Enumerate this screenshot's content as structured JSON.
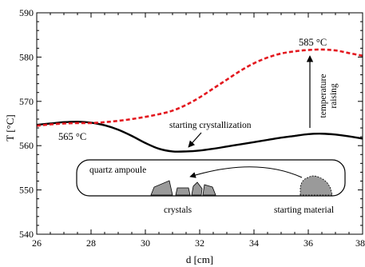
{
  "chart_data": {
    "type": "line",
    "xlabel": "d [cm]",
    "ylabel": "T [°C]",
    "xlim": [
      26,
      38
    ],
    "ylim": [
      540,
      590
    ],
    "xticks": [
      26,
      28,
      30,
      32,
      34,
      36,
      38
    ],
    "yticks": [
      540,
      550,
      560,
      570,
      580,
      590
    ],
    "grid": false,
    "series": [
      {
        "style": "solid",
        "color": "#000000",
        "x": [
          26,
          26.5,
          27,
          27.5,
          28,
          28.5,
          29,
          29.5,
          30,
          30.5,
          31,
          31.5,
          32,
          32.5,
          33,
          33.5,
          34,
          34.5,
          35,
          35.5,
          36,
          36.5,
          37,
          37.5,
          38
        ],
        "y": [
          564.7,
          565.0,
          565.3,
          565.4,
          565.2,
          564.6,
          563.6,
          562.2,
          560.6,
          559.3,
          558.7,
          558.7,
          558.9,
          559.3,
          559.8,
          560.3,
          560.8,
          561.3,
          561.8,
          562.2,
          562.6,
          562.7,
          562.5,
          562.1,
          561.6
        ]
      },
      {
        "style": "dashed",
        "color": "#e3171e",
        "x": [
          26,
          26.5,
          27,
          27.5,
          28,
          28.5,
          29,
          29.5,
          30,
          30.5,
          31,
          31.5,
          32,
          32.5,
          33,
          33.5,
          34,
          34.5,
          35,
          35.5,
          36,
          36.5,
          37,
          37.5,
          38
        ],
        "y": [
          564.5,
          564.8,
          565.0,
          565.1,
          565.1,
          565.3,
          565.6,
          566.0,
          566.5,
          567.1,
          567.9,
          569.2,
          570.9,
          572.9,
          574.9,
          576.9,
          578.6,
          579.9,
          580.8,
          581.3,
          581.6,
          581.7,
          581.5,
          580.9,
          580.3
        ]
      }
    ],
    "annotations": {
      "label_565": "565 °C",
      "label_585": "585 °C",
      "starting_crystallization": "starting crystallization",
      "temperature_raising_1": "temperature",
      "temperature_raising_2": "raising",
      "quartz_ampoule": "quartz ampoule",
      "crystals": "crystals",
      "starting_material": "starting material"
    }
  }
}
